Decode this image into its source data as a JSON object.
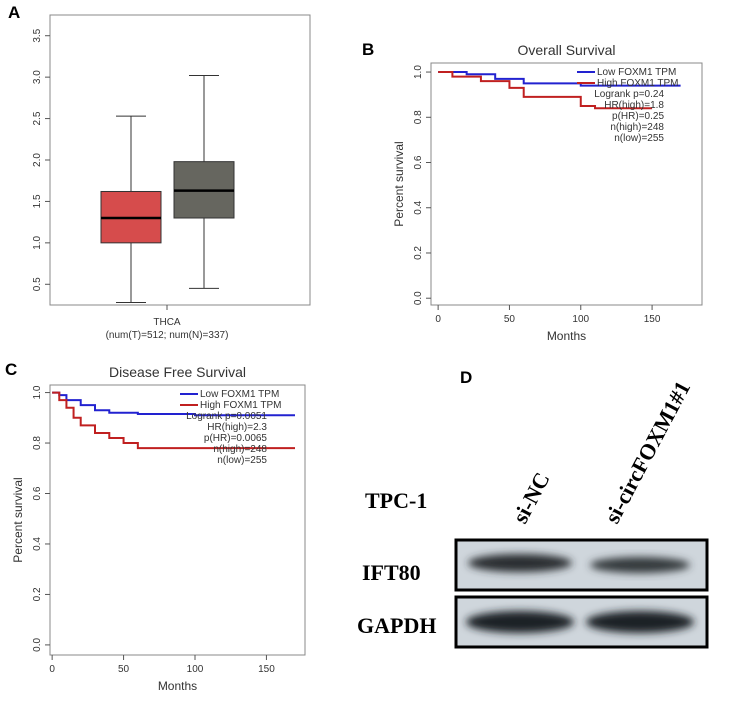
{
  "chart_data": [
    {
      "type": "box",
      "panel": "A",
      "xlabel": "THCA",
      "xlabel_note": "(num(T)=512; num(N)=337)",
      "ylim": [
        0.25,
        3.75
      ],
      "yticks": [
        0.5,
        {
          "value": 1,
          "label": "1.0"
        },
        1.5,
        {
          "value": 2,
          "label": "2.0"
        },
        2.5,
        {
          "value": 3,
          "label": "3.0"
        },
        3.5
      ],
      "boxes": [
        {
          "color": "#d64c4c",
          "min": 0.28,
          "q1": 1.0,
          "median": 1.3,
          "q3": 1.62,
          "max": 2.53
        },
        {
          "color": "#66665f",
          "min": 0.45,
          "q1": 1.3,
          "median": 1.63,
          "q3": 1.98,
          "max": 3.02
        }
      ]
    },
    {
      "type": "line",
      "panel": "B",
      "title": "Overall Survival",
      "xlabel": "Months",
      "ylabel": "Percent survival",
      "xlim": [
        -5,
        185
      ],
      "ylim": [
        -0.03,
        1.04
      ],
      "xticks": [
        0,
        50,
        100,
        150
      ],
      "yticks": [
        {
          "value": 0,
          "label": "0.0"
        },
        0.2,
        0.4,
        0.6,
        0.8,
        {
          "value": 1,
          "label": "1.0"
        }
      ],
      "series": [
        {
          "name": "Low FOXM1 TPM",
          "color": "#2222d0",
          "x": [
            0,
            20,
            40,
            60,
            100,
            170
          ],
          "values": [
            1.0,
            0.99,
            0.97,
            0.95,
            0.94,
            0.94
          ]
        },
        {
          "name": "High FOXM1 TPM",
          "color": "#c02020",
          "x": [
            0,
            10,
            30,
            50,
            60,
            100,
            110,
            150
          ],
          "values": [
            1.0,
            0.98,
            0.96,
            0.93,
            0.89,
            0.85,
            0.84,
            0.84
          ]
        }
      ],
      "annotations": [
        "Logrank p=0.24",
        "HR(high)=1.8",
        "p(HR)=0.25",
        "n(high)=248",
        "n(low)=255"
      ]
    },
    {
      "type": "line",
      "panel": "C",
      "title": "Disease Free Survival",
      "xlabel": "Months",
      "ylabel": "Percent survival",
      "xlim": [
        -1.5,
        177
      ],
      "ylim": [
        -0.04,
        1.03
      ],
      "xticks": [
        0,
        50,
        100,
        150
      ],
      "yticks": [
        {
          "value": 0,
          "label": "0.0"
        },
        0.2,
        0.4,
        0.6,
        0.8,
        {
          "value": 1,
          "label": "1.0"
        }
      ],
      "series": [
        {
          "name": "Low FOXM1 TPM",
          "color": "#2222d0",
          "x": [
            0,
            5,
            10,
            20,
            30,
            40,
            60,
            100,
            170
          ],
          "values": [
            1.0,
            0.99,
            0.97,
            0.95,
            0.93,
            0.92,
            0.915,
            0.91,
            0.91
          ]
        },
        {
          "name": "High FOXM1 TPM",
          "color": "#c02020",
          "x": [
            0,
            5,
            10,
            15,
            20,
            30,
            40,
            50,
            60,
            100,
            170
          ],
          "values": [
            1.0,
            0.97,
            0.94,
            0.9,
            0.87,
            0.84,
            0.82,
            0.8,
            0.78,
            0.78,
            0.78
          ]
        }
      ],
      "annotations": [
        "Logrank p=0.0051",
        "HR(high)=2.3",
        "p(HR)=0.0065",
        "n(high)=248",
        "n(low)=255"
      ]
    }
  ],
  "blot": {
    "panel": "D",
    "cell_line": "TPC-1",
    "lanes": [
      "si-NC",
      "si-circFOXM1#1"
    ],
    "rows": [
      "IFT80",
      "GAPDH"
    ]
  }
}
